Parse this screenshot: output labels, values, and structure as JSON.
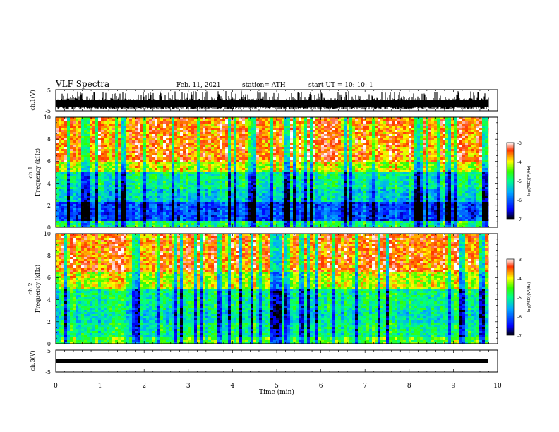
{
  "header": {
    "title": "VLF Spectra",
    "date": "Feb. 11, 2021",
    "station": "station= ATH",
    "start": "start  UT  =    10: 10: 1"
  },
  "chart_data": [
    {
      "id": "ch1-waveform",
      "type": "line",
      "ylabel": "ch.1(V)",
      "ylim": [
        -5,
        5
      ],
      "yticks": [
        "5",
        "-5"
      ],
      "xlim": [
        0,
        10
      ]
    },
    {
      "id": "ch1-spectrogram",
      "type": "heatmap",
      "ylabel": "ch.1",
      "ylabel2": "Frequency  (kHz)",
      "ylim": [
        0,
        10
      ],
      "yticks": [
        "0",
        "2",
        "4",
        "6",
        "8",
        "10"
      ],
      "xlim": [
        0,
        10
      ],
      "colorbar": {
        "label": "log(PSD)(V²/Hz)",
        "range": [
          -7,
          -3
        ],
        "ticks": [
          "-3",
          "-4",
          "-5",
          "-6",
          "-7"
        ]
      }
    },
    {
      "id": "ch2-spectrogram",
      "type": "heatmap",
      "ylabel": "ch.2",
      "ylabel2": "Frequency  (kHz)",
      "ylim": [
        0,
        10
      ],
      "yticks": [
        "0",
        "2",
        "4",
        "6",
        "8",
        "10"
      ],
      "xlim": [
        0,
        10
      ],
      "colorbar": {
        "label": "log(PSD)(V²/Hz)",
        "range": [
          -7,
          -3
        ],
        "ticks": [
          "-3",
          "-4",
          "-5",
          "-6",
          "-7"
        ]
      }
    },
    {
      "id": "ch3-waveform",
      "type": "line",
      "ylabel": "ch.3(V)",
      "ylim": [
        -5,
        5
      ],
      "yticks": [
        "5",
        "-5"
      ],
      "xlim": [
        0,
        10
      ]
    }
  ],
  "xaxis": {
    "label": "Time  (min)",
    "ticks": [
      "0",
      "1",
      "2",
      "3",
      "4",
      "5",
      "6",
      "7",
      "8",
      "9",
      "10"
    ],
    "data_end_min": 9.8
  },
  "colors": {
    "colormap": [
      "#000000",
      "#0000ff",
      "#00aaff",
      "#00ff88",
      "#33ff00",
      "#ffff00",
      "#ff3300",
      "#ffffff"
    ]
  }
}
